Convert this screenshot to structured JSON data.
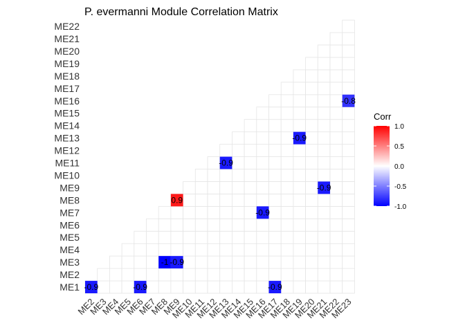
{
  "chart_data": {
    "type": "heatmap",
    "title": "P. evermanni Module Correlation Matrix",
    "x_categories": [
      "ME2",
      "ME3",
      "ME4",
      "ME5",
      "ME6",
      "ME7",
      "ME8",
      "ME9",
      "ME10",
      "ME11",
      "ME12",
      "ME13",
      "ME14",
      "ME15",
      "ME16",
      "ME17",
      "ME18",
      "ME19",
      "ME20",
      "ME21",
      "ME22",
      "ME23"
    ],
    "y_categories": [
      "ME1",
      "ME2",
      "ME3",
      "ME4",
      "ME5",
      "ME6",
      "ME7",
      "ME8",
      "ME9",
      "ME10",
      "ME11",
      "ME12",
      "ME13",
      "ME14",
      "ME15",
      "ME16",
      "ME17",
      "ME18",
      "ME19",
      "ME20",
      "ME21",
      "ME22"
    ],
    "cells": [
      {
        "x": "ME2",
        "y": "ME1",
        "value": -0.9,
        "label": "-0.9"
      },
      {
        "x": "ME6",
        "y": "ME1",
        "value": -0.9,
        "label": "-0.9"
      },
      {
        "x": "ME17",
        "y": "ME1",
        "value": -0.9,
        "label": "-0.9"
      },
      {
        "x": "ME8",
        "y": "ME3",
        "value": -1.0,
        "label": "-1"
      },
      {
        "x": "ME9",
        "y": "ME3",
        "value": -0.9,
        "label": "-0.9"
      },
      {
        "x": "ME16",
        "y": "ME7",
        "value": -0.9,
        "label": "-0.9"
      },
      {
        "x": "ME9",
        "y": "ME8",
        "value": 0.9,
        "label": "0.9"
      },
      {
        "x": "ME21",
        "y": "ME9",
        "value": -0.9,
        "label": "-0.9"
      },
      {
        "x": "ME13",
        "y": "ME11",
        "value": -0.9,
        "label": "-0.9"
      },
      {
        "x": "ME19",
        "y": "ME13",
        "value": -0.9,
        "label": "-0.9"
      },
      {
        "x": "ME23",
        "y": "ME16",
        "value": -0.8,
        "label": "-0.8"
      }
    ],
    "legend": {
      "title": "Corr",
      "placement": "right",
      "range": [
        -1,
        1
      ],
      "ticks": [
        {
          "value": 1,
          "label": "1.0"
        },
        {
          "value": 0.5,
          "label": "0.5"
        },
        {
          "value": 0,
          "label": "0.0"
        },
        {
          "value": -0.5,
          "label": "-0.5"
        },
        {
          "value": -1,
          "label": "-1.0"
        }
      ]
    },
    "colors": {
      "low": "#0000ff",
      "mid": "#ffffff",
      "high": "#ff0000",
      "grid": "#e5e5e5"
    },
    "layout": "lower-triangle",
    "grid": true
  }
}
